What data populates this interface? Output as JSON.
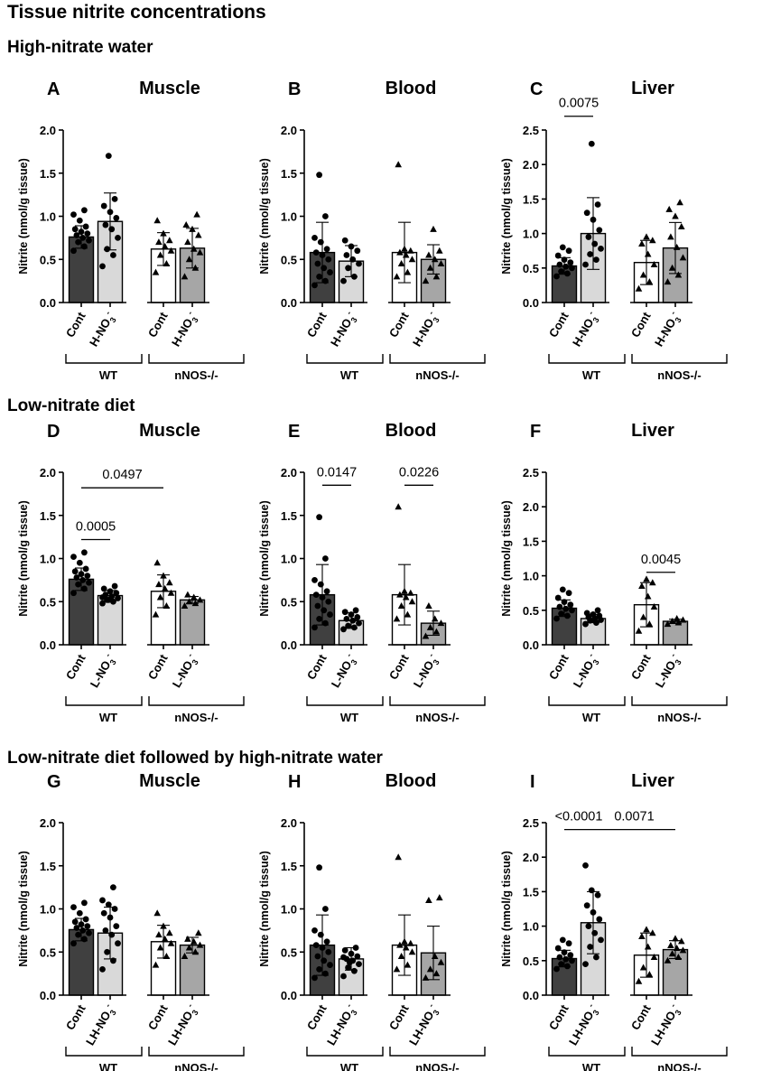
{
  "figure_title": "Tissue nitrite concentrations",
  "sections": [
    {
      "title": "High-nitrate water"
    },
    {
      "title": "Low-nitrate diet"
    },
    {
      "title": "Low-nitrate diet followed by high-nitrate water"
    }
  ],
  "colors": {
    "wt_cont": "#404040",
    "wt_treat": "#d9d9d9",
    "ko_cont": "#ffffff",
    "ko_treat": "#a6a6a6",
    "ink": "#000000"
  },
  "chart_data": [
    {
      "panel": "A",
      "title": "Muscle",
      "type": "bar",
      "ylabel": "Nitrite (nmol/g tissue)",
      "ylim": [
        0,
        2.0
      ],
      "yticks": [
        "0.0",
        "0.5",
        "1.0",
        "1.5",
        "2.0"
      ],
      "categories": [
        "Cont",
        "H-NO3-",
        "Cont",
        "H-NO3-"
      ],
      "groups": [
        "WT",
        "nNOS-/-"
      ],
      "means": [
        0.76,
        0.94,
        0.62,
        0.63
      ],
      "sd": [
        0.13,
        0.33,
        0.19,
        0.23
      ],
      "points": [
        [
          0.6,
          0.65,
          0.7,
          0.72,
          0.75,
          0.78,
          0.8,
          0.82,
          0.85,
          0.88,
          0.95,
          1.02,
          1.07
        ],
        [
          0.42,
          0.55,
          0.62,
          0.75,
          0.85,
          0.9,
          0.98,
          1.05,
          1.12,
          1.2,
          1.7
        ],
        [
          0.35,
          0.45,
          0.55,
          0.6,
          0.65,
          0.7,
          0.72,
          0.8,
          0.95
        ],
        [
          0.3,
          0.4,
          0.5,
          0.58,
          0.62,
          0.7,
          0.78,
          0.85,
          0.9,
          1.02
        ]
      ],
      "comparisons": []
    },
    {
      "panel": "B",
      "title": "Blood",
      "type": "bar",
      "ylabel": "Nitrite (nmol/g tissue)",
      "ylim": [
        0,
        2.0
      ],
      "yticks": [
        "0.0",
        "0.5",
        "1.0",
        "1.5",
        "2.0"
      ],
      "categories": [
        "Cont",
        "H-NO3-",
        "Cont",
        "H-NO3-"
      ],
      "groups": [
        "WT",
        "nNOS-/-"
      ],
      "means": [
        0.58,
        0.48,
        0.58,
        0.5
      ],
      "sd": [
        0.35,
        0.18,
        0.35,
        0.17
      ],
      "points": [
        [
          0.2,
          0.25,
          0.3,
          0.35,
          0.4,
          0.45,
          0.5,
          0.55,
          0.58,
          0.62,
          0.7,
          0.75,
          1.0,
          1.48
        ],
        [
          0.25,
          0.3,
          0.4,
          0.45,
          0.5,
          0.55,
          0.6,
          0.65,
          0.72
        ],
        [
          0.3,
          0.35,
          0.45,
          0.5,
          0.55,
          0.58,
          0.6,
          0.62,
          1.6
        ],
        [
          0.25,
          0.3,
          0.4,
          0.45,
          0.5,
          0.55,
          0.6,
          0.85
        ]
      ],
      "comparisons": []
    },
    {
      "panel": "C",
      "title": "Liver",
      "type": "bar",
      "ylabel": "Nitrite (nmol/g tissue)",
      "ylim": [
        0,
        2.5
      ],
      "yticks": [
        "0.0",
        "0.5",
        "1.0",
        "1.5",
        "2.0",
        "2.5"
      ],
      "categories": [
        "Cont",
        "H-NO3-",
        "Cont",
        "H-NO3-"
      ],
      "groups": [
        "WT",
        "nNOS-/-"
      ],
      "means": [
        0.53,
        1.0,
        0.58,
        0.79
      ],
      "sd": [
        0.12,
        0.52,
        0.32,
        0.37
      ],
      "points": [
        [
          0.38,
          0.42,
          0.45,
          0.5,
          0.52,
          0.55,
          0.58,
          0.62,
          0.68,
          0.75,
          0.8
        ],
        [
          0.55,
          0.62,
          0.7,
          0.78,
          0.85,
          0.95,
          1.05,
          1.2,
          1.3,
          1.42,
          2.3
        ],
        [
          0.2,
          0.3,
          0.4,
          0.55,
          0.7,
          0.85,
          0.9,
          0.95
        ],
        [
          0.3,
          0.4,
          0.5,
          0.65,
          0.8,
          0.95,
          1.1,
          1.25,
          1.35,
          1.45
        ]
      ],
      "comparisons": [
        {
          "from": 0,
          "to": 1,
          "y": 2.7,
          "label": "0.0075"
        }
      ]
    },
    {
      "panel": "D",
      "title": "Muscle",
      "type": "bar",
      "ylabel": "Nitrite (nmol/g tissue)",
      "ylim": [
        0,
        2.0
      ],
      "yticks": [
        "0.0",
        "0.5",
        "1.0",
        "1.5",
        "2.0"
      ],
      "categories": [
        "Cont",
        "L-NO3-",
        "Cont",
        "L-NO3-"
      ],
      "groups": [
        "WT",
        "nNOS-/-"
      ],
      "means": [
        0.76,
        0.57,
        0.62,
        0.52
      ],
      "sd": [
        0.13,
        0.06,
        0.19,
        0.04
      ],
      "points": [
        [
          0.6,
          0.65,
          0.7,
          0.72,
          0.75,
          0.78,
          0.8,
          0.82,
          0.85,
          0.88,
          0.95,
          1.02,
          1.07
        ],
        [
          0.48,
          0.5,
          0.52,
          0.54,
          0.56,
          0.58,
          0.6,
          0.62,
          0.65,
          0.68,
          0.52,
          0.55
        ],
        [
          0.35,
          0.45,
          0.55,
          0.6,
          0.65,
          0.7,
          0.72,
          0.8,
          0.95
        ],
        [
          0.45,
          0.48,
          0.5,
          0.52,
          0.55,
          0.58
        ]
      ],
      "comparisons": [
        {
          "from": 0,
          "to": 1,
          "y": 1.22,
          "label": "0.0005"
        },
        {
          "from": 0,
          "to": 2,
          "y": 1.82,
          "label": "0.0497"
        }
      ]
    },
    {
      "panel": "E",
      "title": "Blood",
      "type": "bar",
      "ylabel": "Nitrite (nmol/g tissue)",
      "ylim": [
        0,
        2.0
      ],
      "yticks": [
        "0.0",
        "0.5",
        "1.0",
        "1.5",
        "2.0"
      ],
      "categories": [
        "Cont",
        "L-NO3-",
        "Cont",
        "L-NO3-"
      ],
      "groups": [
        "WT",
        "nNOS-/-"
      ],
      "means": [
        0.58,
        0.28,
        0.58,
        0.25
      ],
      "sd": [
        0.35,
        0.09,
        0.35,
        0.14
      ],
      "points": [
        [
          0.2,
          0.25,
          0.3,
          0.35,
          0.4,
          0.45,
          0.5,
          0.55,
          0.58,
          0.62,
          0.7,
          0.75,
          1.0,
          1.48
        ],
        [
          0.18,
          0.2,
          0.22,
          0.25,
          0.28,
          0.3,
          0.32,
          0.35,
          0.38,
          0.4
        ],
        [
          0.3,
          0.35,
          0.45,
          0.5,
          0.55,
          0.58,
          0.6,
          0.62,
          1.6
        ],
        [
          0.1,
          0.15,
          0.2,
          0.25,
          0.3,
          0.45
        ]
      ],
      "comparisons": [
        {
          "from": 0,
          "to": 1,
          "y": 1.85,
          "label": "0.0147"
        },
        {
          "from": 2,
          "to": 3,
          "y": 1.85,
          "label": "0.0226"
        }
      ]
    },
    {
      "panel": "F",
      "title": "Liver",
      "type": "bar",
      "ylabel": "Nitrite (nmol/g tissue)",
      "ylim": [
        0,
        2.5
      ],
      "yticks": [
        "0.0",
        "0.5",
        "1.0",
        "1.5",
        "2.0",
        "2.5"
      ],
      "categories": [
        "Cont",
        "L-NO3-",
        "Cont",
        "L-NO3-"
      ],
      "groups": [
        "WT",
        "nNOS-/-"
      ],
      "means": [
        0.53,
        0.38,
        0.58,
        0.34
      ],
      "sd": [
        0.12,
        0.06,
        0.32,
        0.03
      ],
      "points": [
        [
          0.38,
          0.42,
          0.45,
          0.5,
          0.52,
          0.55,
          0.58,
          0.62,
          0.68,
          0.75,
          0.8
        ],
        [
          0.3,
          0.32,
          0.35,
          0.36,
          0.38,
          0.4,
          0.42,
          0.44,
          0.46,
          0.5
        ],
        [
          0.2,
          0.3,
          0.4,
          0.55,
          0.7,
          0.85,
          0.9,
          0.95
        ],
        [
          0.3,
          0.32,
          0.34,
          0.36,
          0.38
        ]
      ],
      "comparisons": [
        {
          "from": 2,
          "to": 3,
          "y": 1.05,
          "label": "0.0045"
        }
      ]
    },
    {
      "panel": "G",
      "title": "Muscle",
      "type": "bar",
      "ylabel": "Nitrite (nmol/g tissue)",
      "ylim": [
        0,
        2.0
      ],
      "yticks": [
        "0.0",
        "0.5",
        "1.0",
        "1.5",
        "2.0"
      ],
      "categories": [
        "Cont",
        "LH-NO3-",
        "Cont",
        "LH-NO3-"
      ],
      "groups": [
        "WT",
        "nNOS-/-"
      ],
      "means": [
        0.76,
        0.72,
        0.62,
        0.58
      ],
      "sd": [
        0.13,
        0.3,
        0.19,
        0.09
      ],
      "points": [
        [
          0.6,
          0.65,
          0.7,
          0.72,
          0.75,
          0.78,
          0.8,
          0.82,
          0.85,
          0.88,
          0.95,
          1.02,
          1.07
        ],
        [
          0.3,
          0.4,
          0.5,
          0.6,
          0.7,
          0.75,
          0.8,
          0.9,
          0.95,
          1.0,
          1.05,
          1.1,
          1.25
        ],
        [
          0.35,
          0.45,
          0.55,
          0.6,
          0.65,
          0.7,
          0.72,
          0.8,
          0.95
        ],
        [
          0.45,
          0.5,
          0.55,
          0.58,
          0.62,
          0.65,
          0.72
        ]
      ],
      "comparisons": []
    },
    {
      "panel": "H",
      "title": "Blood",
      "type": "bar",
      "ylabel": "Nitrite (nmol/g tissue)",
      "ylim": [
        0,
        2.0
      ],
      "yticks": [
        "0.0",
        "0.5",
        "1.0",
        "1.5",
        "2.0"
      ],
      "categories": [
        "Cont",
        "LH-NO3-",
        "Cont",
        "LH-NO3-"
      ],
      "groups": [
        "WT",
        "nNOS-/-"
      ],
      "means": [
        0.58,
        0.42,
        0.58,
        0.49
      ],
      "sd": [
        0.35,
        0.13,
        0.35,
        0.31
      ],
      "points": [
        [
          0.2,
          0.25,
          0.3,
          0.35,
          0.4,
          0.45,
          0.5,
          0.55,
          0.58,
          0.62,
          0.7,
          0.75,
          1.0,
          1.48
        ],
        [
          0.22,
          0.28,
          0.32,
          0.36,
          0.4,
          0.42,
          0.45,
          0.48,
          0.52,
          0.55,
          0.38,
          0.44
        ],
        [
          0.3,
          0.35,
          0.45,
          0.5,
          0.55,
          0.58,
          0.6,
          0.62,
          1.6
        ],
        [
          0.2,
          0.25,
          0.3,
          0.38,
          0.45,
          1.1,
          1.13
        ]
      ],
      "comparisons": []
    },
    {
      "panel": "I",
      "title": "Liver",
      "type": "bar",
      "ylabel": "Nitrite (nmol/g tissue)",
      "ylim": [
        0,
        2.5
      ],
      "yticks": [
        "0.0",
        "0.5",
        "1.0",
        "1.5",
        "2.0",
        "2.5"
      ],
      "categories": [
        "Cont",
        "LH-NO3-",
        "Cont",
        "LH-NO3-"
      ],
      "groups": [
        "WT",
        "nNOS-/-"
      ],
      "means": [
        0.53,
        1.05,
        0.58,
        0.66
      ],
      "sd": [
        0.12,
        0.45,
        0.32,
        0.13
      ],
      "points": [
        [
          0.38,
          0.42,
          0.45,
          0.5,
          0.52,
          0.55,
          0.58,
          0.62,
          0.68,
          0.75,
          0.8
        ],
        [
          0.45,
          0.55,
          0.7,
          0.8,
          0.9,
          1.0,
          1.1,
          1.2,
          1.3,
          1.45,
          1.52,
          1.88
        ],
        [
          0.2,
          0.3,
          0.4,
          0.55,
          0.7,
          0.85,
          0.9,
          0.95
        ],
        [
          0.5,
          0.55,
          0.6,
          0.65,
          0.68,
          0.72,
          0.78,
          0.82
        ]
      ],
      "comparisons": [
        {
          "from": 0,
          "to": 1,
          "y": 2.4,
          "label": "<0.0001"
        },
        {
          "from": 1,
          "to": 3,
          "y": 2.4,
          "label": "0.0071"
        }
      ]
    }
  ]
}
